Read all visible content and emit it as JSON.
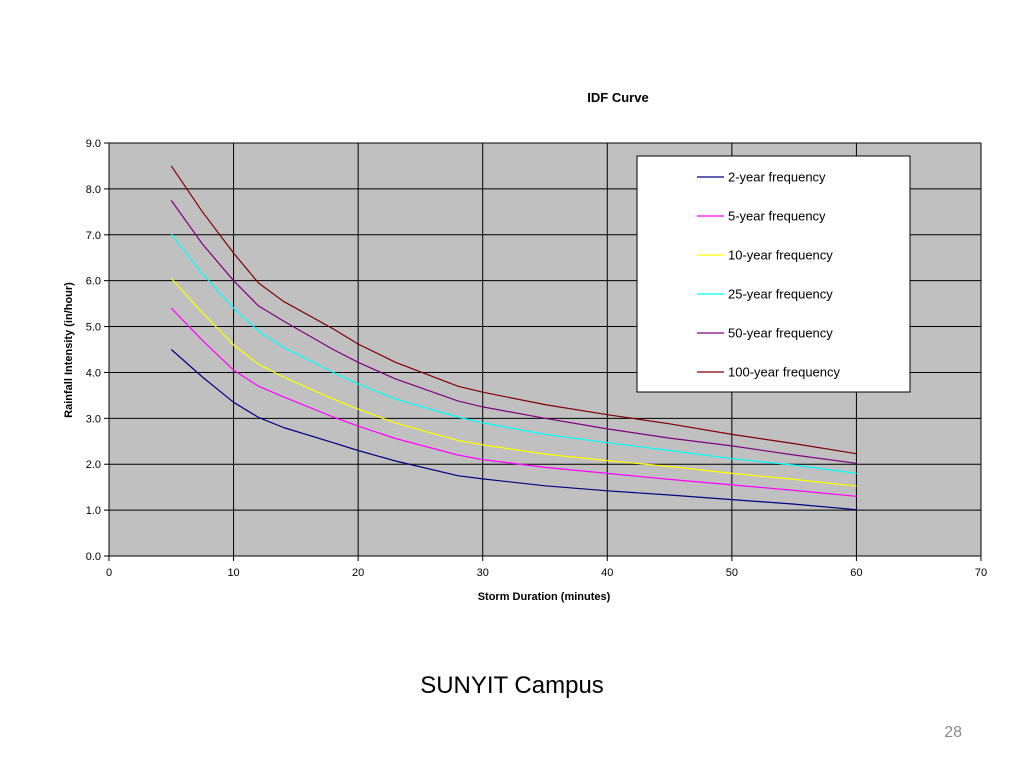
{
  "slide": {
    "caption": "SUNYIT Campus",
    "page_number": "28"
  },
  "chart_data": {
    "type": "line",
    "title": "IDF Curve",
    "xlabel": "Storm Duration (minutes)",
    "ylabel": "Rainfall Intensity (in/hour)",
    "xlim": [
      0,
      70
    ],
    "ylim": [
      0,
      9
    ],
    "x_ticks": [
      "0",
      "10",
      "20",
      "30",
      "40",
      "50",
      "60",
      "70"
    ],
    "y_ticks": [
      "0.0",
      "1.0",
      "2.0",
      "3.0",
      "4.0",
      "5.0",
      "6.0",
      "7.0",
      "8.0",
      "9.0"
    ],
    "grid": true,
    "plot_background": "#c0c0c0",
    "legend_position": "top-right",
    "x": [
      5,
      7.5,
      10,
      12,
      14,
      18,
      20,
      23,
      28,
      30,
      35,
      40,
      45,
      50,
      55,
      60
    ],
    "series": [
      {
        "name": "2-year frequency",
        "color": "#000080",
        "values": [
          4.5,
          3.9,
          3.35,
          3.02,
          2.8,
          2.47,
          2.3,
          2.07,
          1.75,
          1.68,
          1.53,
          1.42,
          1.33,
          1.23,
          1.13,
          1.01
        ]
      },
      {
        "name": "5-year frequency",
        "color": "#ff00ff",
        "values": [
          5.4,
          4.7,
          4.05,
          3.7,
          3.47,
          3.03,
          2.83,
          2.56,
          2.2,
          2.1,
          1.93,
          1.8,
          1.67,
          1.55,
          1.43,
          1.3
        ]
      },
      {
        "name": "10-year frequency",
        "color": "#ffff00",
        "values": [
          6.05,
          5.3,
          4.6,
          4.18,
          3.9,
          3.42,
          3.2,
          2.9,
          2.52,
          2.42,
          2.22,
          2.08,
          1.95,
          1.8,
          1.67,
          1.52
        ]
      },
      {
        "name": "25-year frequency",
        "color": "#00ffff",
        "values": [
          7.02,
          6.15,
          5.4,
          4.9,
          4.55,
          4.0,
          3.75,
          3.42,
          3.03,
          2.9,
          2.65,
          2.47,
          2.3,
          2.12,
          1.98,
          1.8
        ]
      },
      {
        "name": "50-year frequency",
        "color": "#800080",
        "values": [
          7.75,
          6.8,
          6.0,
          5.45,
          5.12,
          4.5,
          4.22,
          3.86,
          3.38,
          3.25,
          3.0,
          2.77,
          2.57,
          2.4,
          2.2,
          2.02
        ]
      },
      {
        "name": "100-year frequency",
        "color": "#800000",
        "values": [
          8.5,
          7.5,
          6.6,
          5.95,
          5.55,
          4.95,
          4.62,
          4.22,
          3.7,
          3.57,
          3.3,
          3.08,
          2.88,
          2.65,
          2.45,
          2.23
        ]
      }
    ]
  }
}
